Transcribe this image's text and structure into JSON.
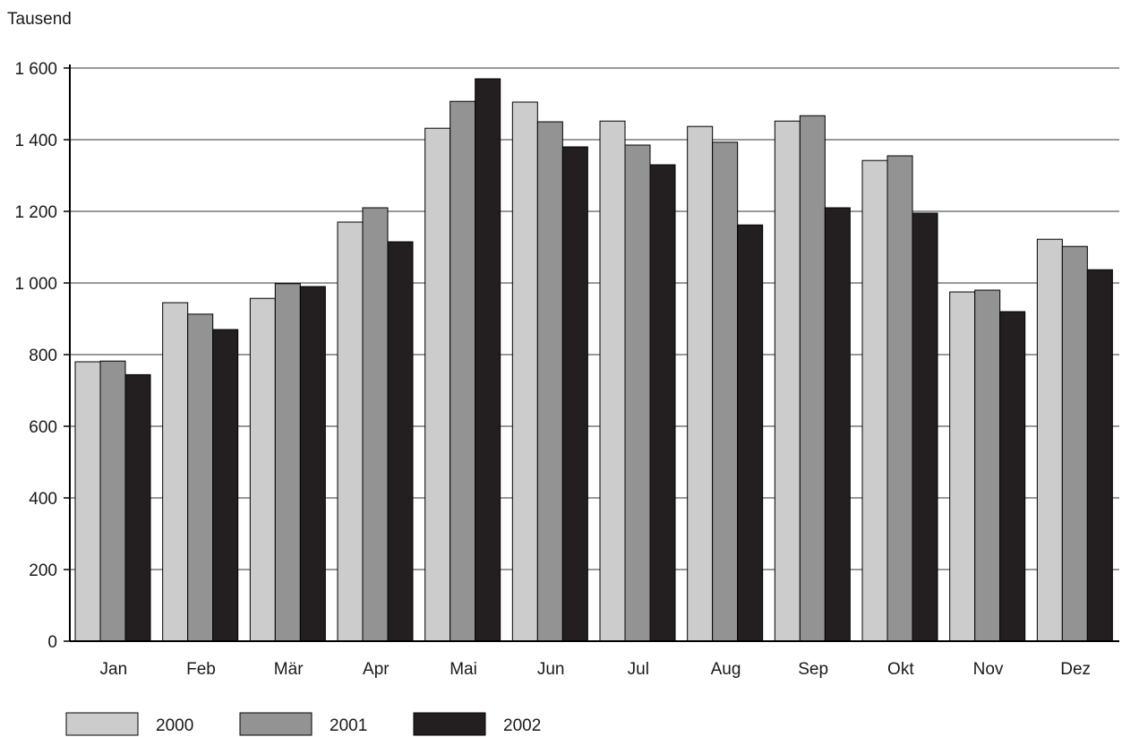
{
  "chart_data": {
    "type": "bar",
    "unit_label": "Tausend",
    "categories": [
      "Jan",
      "Feb",
      "Mär",
      "Apr",
      "Mai",
      "Jun",
      "Jul",
      "Aug",
      "Sep",
      "Okt",
      "Nov",
      "Dez"
    ],
    "series": [
      {
        "name": "2000",
        "color": "#cccccc",
        "values": [
          780,
          945,
          957,
          1170,
          1432,
          1505,
          1452,
          1437,
          1452,
          1342,
          975,
          1122
        ]
      },
      {
        "name": "2001",
        "color": "#939393",
        "values": [
          782,
          913,
          998,
          1210,
          1507,
          1450,
          1385,
          1393,
          1467,
          1355,
          980,
          1102
        ]
      },
      {
        "name": "2002",
        "color": "#231f20",
        "values": [
          744,
          870,
          990,
          1115,
          1570,
          1380,
          1330,
          1162,
          1210,
          1195,
          920,
          1037
        ]
      }
    ],
    "y_ticks": [
      "0",
      "200",
      "400",
      "600",
      "800",
      "1 000",
      "1 200",
      "1 400",
      "1 600"
    ],
    "ylim": [
      0,
      1600
    ],
    "grid": true,
    "legend_position": "bottom-left"
  }
}
